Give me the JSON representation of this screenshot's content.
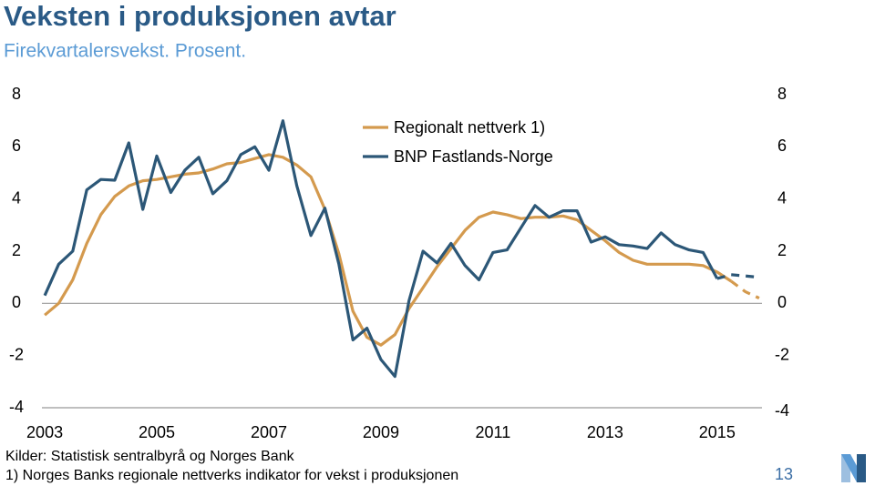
{
  "chart_data": {
    "type": "line",
    "title": "Veksten i produksjonen avtar",
    "subtitle": "Firekvartalersvekst. Prosent.",
    "x": [
      2003,
      2003.25,
      2003.5,
      2003.75,
      2004,
      2004.25,
      2004.5,
      2004.75,
      2005,
      2005.25,
      2005.5,
      2005.75,
      2006,
      2006.25,
      2006.5,
      2006.75,
      2007,
      2007.25,
      2007.5,
      2007.75,
      2008,
      2008.25,
      2008.5,
      2008.75,
      2009,
      2009.25,
      2009.5,
      2009.75,
      2010,
      2010.25,
      2010.5,
      2010.75,
      2011,
      2011.25,
      2011.5,
      2011.75,
      2012,
      2012.25,
      2012.5,
      2012.75,
      2013,
      2013.25,
      2013.5,
      2013.75,
      2014,
      2014.25,
      2014.5,
      2014.75,
      2015,
      2015.25,
      2015.5,
      2015.75
    ],
    "xlim": [
      2002.95,
      2015.8
    ],
    "xticks": [
      2003,
      2005,
      2007,
      2009,
      2011,
      2013,
      2015
    ],
    "ylim": [
      -4,
      8
    ],
    "yticks": [
      -4,
      -2,
      0,
      2,
      4,
      6,
      8
    ],
    "y2lim": [
      -4,
      8
    ],
    "y2ticks": [
      -4,
      -2,
      0,
      2,
      4,
      6,
      8
    ],
    "series": [
      {
        "name": "Regionalt nettverk 1)",
        "color": "#d49a4e",
        "dash_from": 49,
        "values": [
          -0.45,
          0,
          0.9,
          2.3,
          3.4,
          4.1,
          4.5,
          4.7,
          4.75,
          4.85,
          4.95,
          5.0,
          5.15,
          5.35,
          5.4,
          5.55,
          5.7,
          5.6,
          5.3,
          4.85,
          3.6,
          1.9,
          -0.3,
          -1.3,
          -1.6,
          -1.2,
          -0.2,
          0.6,
          1.4,
          2.1,
          2.8,
          3.3,
          3.5,
          3.4,
          3.25,
          3.3,
          3.3,
          3.35,
          3.2,
          2.8,
          2.4,
          1.95,
          1.65,
          1.5,
          1.5,
          1.5,
          1.5,
          1.45,
          1.2,
          0.85,
          0.45,
          0.2
        ]
      },
      {
        "name": "BNP Fastlands-Norge",
        "color": "#2c5777",
        "dash_from": 48,
        "values": [
          0.3,
          1.5,
          2.0,
          4.35,
          4.75,
          4.72,
          6.15,
          3.6,
          5.65,
          4.25,
          5.1,
          5.6,
          4.2,
          4.7,
          5.7,
          6.0,
          5.1,
          7.0,
          4.5,
          2.6,
          3.65,
          1.5,
          -1.4,
          -0.95,
          -2.15,
          -2.8,
          0.1,
          2.0,
          1.55,
          2.3,
          1.45,
          0.9,
          1.95,
          2.05,
          2.9,
          3.75,
          3.3,
          3.55,
          3.55,
          2.35,
          2.55,
          2.25,
          2.2,
          2.1,
          2.7,
          2.25,
          2.05,
          1.95,
          0.95,
          1.1,
          1.05,
          1.0
        ]
      }
    ],
    "notes": [
      "Kilder: Statistisk sentralbyrå og Norges Bank",
      "1) Norges Banks regionale nettverks indikator for vekst i produksjonen"
    ],
    "page_number": "13"
  }
}
